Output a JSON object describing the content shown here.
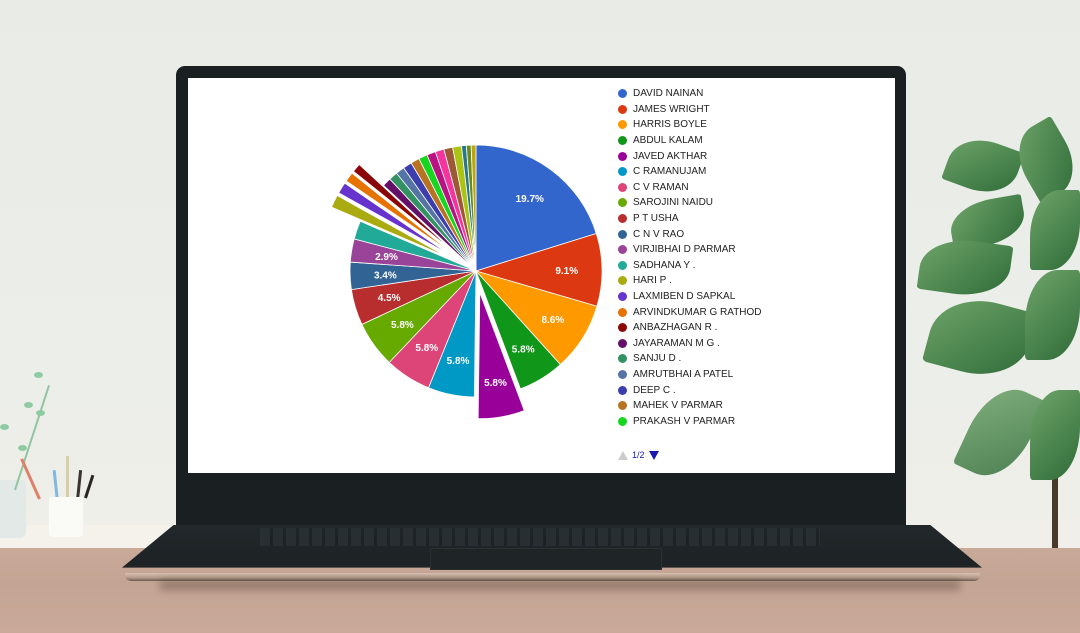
{
  "chart_data": {
    "type": "pie",
    "title": "",
    "legend_position": "right",
    "legend_page": "1/2",
    "series": [
      {
        "name": "DAVID NAINAN",
        "value": 19.7,
        "color": "#3366cc",
        "label": "19.7%"
      },
      {
        "name": "JAMES WRIGHT",
        "value": 9.1,
        "color": "#dc3912",
        "label": "9.1%"
      },
      {
        "name": "HARRIS BOYLE",
        "value": 8.6,
        "color": "#ff9900",
        "label": "8.6%"
      },
      {
        "name": "ABDUL KALAM",
        "value": 5.8,
        "color": "#109618",
        "label": "5.8%"
      },
      {
        "name": "JAVED AKTHAR",
        "value": 5.8,
        "color": "#990099",
        "label": "5.8%",
        "exploded": true
      },
      {
        "name": "C RAMANUJAM",
        "value": 5.8,
        "color": "#0099c6",
        "label": "5.8%"
      },
      {
        "name": "C V RAMAN",
        "value": 5.8,
        "color": "#dd4477",
        "label": "5.8%"
      },
      {
        "name": "SAROJINI NAIDU",
        "value": 5.8,
        "color": "#66aa00",
        "label": "5.8%"
      },
      {
        "name": "P T USHA",
        "value": 4.5,
        "color": "#b82e2e",
        "label": "4.5%"
      },
      {
        "name": "C N V RAO",
        "value": 3.4,
        "color": "#316395",
        "label": "3.4%"
      },
      {
        "name": "VIRJIBHAI D PARMAR",
        "value": 2.9,
        "color": "#994499",
        "label": "2.9%"
      },
      {
        "name": "SADHANA Y .",
        "value": 2.3,
        "color": "#22aa99",
        "label": ""
      },
      {
        "name": "HARI P .",
        "value": 1.6,
        "color": "#aaaa11",
        "label": "",
        "exploded": true
      },
      {
        "name": "LAXMIBEN D SAPKAL",
        "value": 1.4,
        "color": "#6633cc",
        "label": "",
        "exploded": true
      },
      {
        "name": "ARVINDKUMAR G RATHOD",
        "value": 1.2,
        "color": "#e67300",
        "label": "",
        "exploded": true
      },
      {
        "name": "ANBAZHAGAN R .",
        "value": 1.1,
        "color": "#8b0707",
        "label": "",
        "exploded": true
      },
      {
        "name": "JAYARAMAN M G .",
        "value": 1.1,
        "color": "#651067",
        "label": ""
      },
      {
        "name": "SANJU D .",
        "value": 1.1,
        "color": "#329262",
        "label": ""
      },
      {
        "name": "AMRUTBHAI A PATEL",
        "value": 1.1,
        "color": "#5574a6",
        "label": ""
      },
      {
        "name": "DEEP C .",
        "value": 1.1,
        "color": "#3b3eac",
        "label": ""
      },
      {
        "name": "MAHEK V PARMAR",
        "value": 1.1,
        "color": "#b77322",
        "label": ""
      },
      {
        "name": "PRAKASH V PARMAR",
        "value": 1.1,
        "color": "#16d620",
        "label": ""
      },
      {
        "name": "",
        "value": 1.1,
        "color": "#b91383",
        "label": ""
      },
      {
        "name": "",
        "value": 1.1,
        "color": "#f4359e",
        "label": ""
      },
      {
        "name": "",
        "value": 1.1,
        "color": "#9c5935",
        "label": ""
      },
      {
        "name": "",
        "value": 1.1,
        "color": "#a9c413",
        "label": ""
      },
      {
        "name": "",
        "value": 0.6,
        "color": "#2a778d",
        "label": ""
      },
      {
        "name": "",
        "value": 0.6,
        "color": "#668d1c",
        "label": ""
      },
      {
        "name": "",
        "value": 0.6,
        "color": "#bea413",
        "label": ""
      }
    ]
  },
  "legend": {
    "items": [
      {
        "label": "DAVID NAINAN",
        "color": "#3366cc"
      },
      {
        "label": "JAMES WRIGHT",
        "color": "#dc3912"
      },
      {
        "label": "HARRIS BOYLE",
        "color": "#ff9900"
      },
      {
        "label": "ABDUL KALAM",
        "color": "#109618"
      },
      {
        "label": "JAVED AKTHAR",
        "color": "#990099"
      },
      {
        "label": "C RAMANUJAM",
        "color": "#0099c6"
      },
      {
        "label": "C V RAMAN",
        "color": "#dd4477"
      },
      {
        "label": "SAROJINI NAIDU",
        "color": "#66aa00"
      },
      {
        "label": "P T USHA",
        "color": "#b82e2e"
      },
      {
        "label": "C N V RAO",
        "color": "#316395"
      },
      {
        "label": "VIRJIBHAI D PARMAR",
        "color": "#994499"
      },
      {
        "label": "SADHANA Y .",
        "color": "#22aa99"
      },
      {
        "label": "HARI P .",
        "color": "#aaaa11"
      },
      {
        "label": "LAXMIBEN D SAPKAL",
        "color": "#6633cc"
      },
      {
        "label": "ARVINDKUMAR G RATHOD",
        "color": "#e67300"
      },
      {
        "label": "ANBAZHAGAN R .",
        "color": "#8b0707"
      },
      {
        "label": "JAYARAMAN M G .",
        "color": "#651067"
      },
      {
        "label": "SANJU D .",
        "color": "#329262"
      },
      {
        "label": "AMRUTBHAI A PATEL",
        "color": "#5574a6"
      },
      {
        "label": "DEEP C .",
        "color": "#3b3eac"
      },
      {
        "label": "MAHEK V PARMAR",
        "color": "#b77322"
      },
      {
        "label": "PRAKASH V PARMAR",
        "color": "#16d620"
      }
    ],
    "pager": {
      "text": "1/2",
      "prev_icon": "triangle-up-icon",
      "next_icon": "triangle-down-icon"
    }
  }
}
